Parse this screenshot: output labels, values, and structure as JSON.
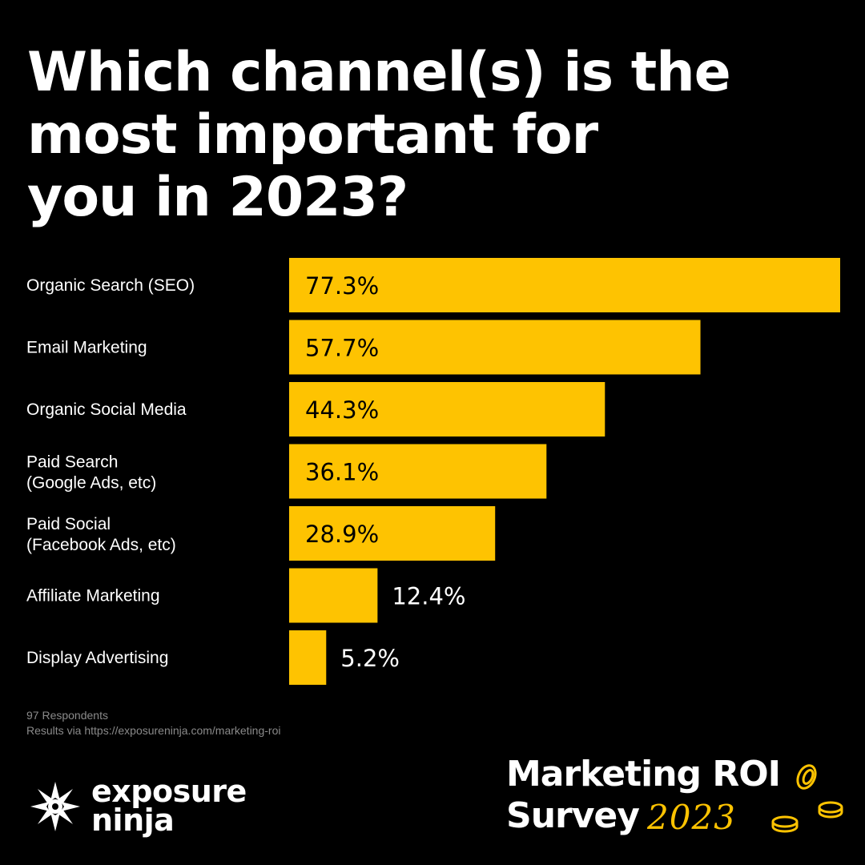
{
  "title": {
    "line1": "Which channel(s) is the",
    "line2": "most important for",
    "line3": "you in 2023?"
  },
  "chart_data": {
    "type": "bar",
    "orientation": "horizontal",
    "categories": [
      [
        "Organic Search (SEO)"
      ],
      [
        "Email Marketing"
      ],
      [
        "Organic Social Media"
      ],
      [
        "Paid Search",
        "(Google Ads, etc)"
      ],
      [
        "Paid Social",
        "(Facebook Ads, etc)"
      ],
      [
        "Affiliate Marketing"
      ],
      [
        "Display Advertising"
      ]
    ],
    "values": [
      77.3,
      57.7,
      44.3,
      36.1,
      28.9,
      12.4,
      5.2
    ],
    "value_labels": [
      "77.3%",
      "57.7%",
      "44.3%",
      "36.1%",
      "28.9%",
      "12.4%",
      "5.2%"
    ],
    "xlim": [
      0,
      77.3
    ],
    "grid": false,
    "bar_color": "#FEC301",
    "background": "#000000"
  },
  "footnote": {
    "respondents": "97 Respondents",
    "source": "Results via https://exposureninja.com/marketing-roi"
  },
  "brand": {
    "line1": "exposure",
    "line2": "ninja",
    "logo_icon": "ninja-star-icon"
  },
  "survey_badge": {
    "line1": "Marketing ROI",
    "line2": "Survey",
    "year": "2023",
    "icon": "coins-icon",
    "accent": "#FEC301"
  }
}
